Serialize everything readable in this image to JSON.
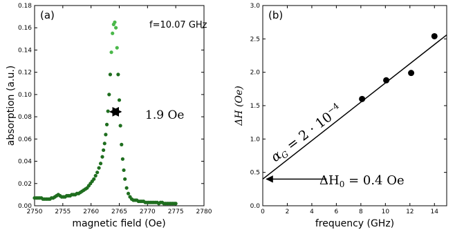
{
  "chart_data": [
    {
      "type": "scatter",
      "panel_label": "(a)",
      "annotation": "f=10.07 GHz",
      "linewidth_annotation": "1.9 Oe",
      "xlabel": "magnetic field (Oe)",
      "ylabel": "absorption (a.u.)",
      "xlim": [
        2750,
        2780
      ],
      "ylim": [
        0,
        0.18
      ],
      "xticks": [
        "2750",
        "2755",
        "2760",
        "2765",
        "2770",
        "2775",
        "2780"
      ],
      "yticks": [
        "0.00",
        "0.02",
        "0.04",
        "0.06",
        "0.08",
        "0.10",
        "0.12",
        "0.14",
        "0.16",
        "0.18"
      ],
      "point_color": "#1f6e1f",
      "peak_point_color": "#4ab84a",
      "x": [
        2750.0,
        2750.3,
        2750.6,
        2750.9,
        2751.2,
        2751.5,
        2751.8,
        2752.1,
        2752.4,
        2752.7,
        2753.0,
        2753.3,
        2753.6,
        2753.9,
        2754.2,
        2754.5,
        2754.8,
        2755.1,
        2755.4,
        2755.7,
        2756.0,
        2756.3,
        2756.6,
        2756.9,
        2757.2,
        2757.5,
        2757.8,
        2758.1,
        2758.4,
        2758.7,
        2759.0,
        2759.3,
        2759.6,
        2759.9,
        2760.2,
        2760.5,
        2760.8,
        2761.1,
        2761.4,
        2761.7,
        2762.0,
        2762.2,
        2762.4,
        2762.6,
        2762.8,
        2763.0,
        2763.2,
        2763.4,
        2763.6,
        2763.8,
        2764.0,
        2764.2,
        2764.4,
        2764.6,
        2764.8,
        2765.0,
        2765.2,
        2765.4,
        2765.6,
        2765.8,
        2766.0,
        2766.3,
        2766.6,
        2766.9,
        2767.2,
        2767.5,
        2767.8,
        2768.1,
        2768.4,
        2768.7,
        2769.0,
        2769.3,
        2769.6,
        2769.9,
        2770.2,
        2770.5,
        2770.8,
        2771.1,
        2771.4,
        2771.7,
        2772.0,
        2772.3,
        2772.6,
        2772.9,
        2773.2,
        2773.5,
        2773.8,
        2774.1,
        2774.4,
        2774.7,
        2775.0
      ],
      "y": [
        0.007,
        0.007,
        0.007,
        0.007,
        0.007,
        0.006,
        0.006,
        0.006,
        0.006,
        0.006,
        0.007,
        0.007,
        0.008,
        0.009,
        0.01,
        0.009,
        0.008,
        0.008,
        0.008,
        0.009,
        0.009,
        0.009,
        0.01,
        0.01,
        0.01,
        0.011,
        0.011,
        0.012,
        0.013,
        0.014,
        0.015,
        0.016,
        0.018,
        0.02,
        0.022,
        0.024,
        0.027,
        0.03,
        0.034,
        0.038,
        0.044,
        0.05,
        0.056,
        0.064,
        0.073,
        0.085,
        0.1,
        0.118,
        0.138,
        0.155,
        0.163,
        0.165,
        0.16,
        0.142,
        0.118,
        0.095,
        0.072,
        0.055,
        0.042,
        0.032,
        0.024,
        0.016,
        0.011,
        0.008,
        0.006,
        0.005,
        0.005,
        0.005,
        0.004,
        0.004,
        0.004,
        0.004,
        0.003,
        0.003,
        0.003,
        0.003,
        0.003,
        0.003,
        0.003,
        0.003,
        0.002,
        0.003,
        0.003,
        0.002,
        0.002,
        0.002,
        0.002,
        0.002,
        0.002,
        0.002,
        0.002
      ],
      "linewidth_arrow": {
        "x_from": 2763.4,
        "x_to": 2765.3,
        "y": 0.0845
      }
    },
    {
      "type": "scatter",
      "panel_label": "(b)",
      "xlabel": "frequency (GHz)",
      "ylabel": "ΔH (Oe)",
      "xlim": [
        0,
        15
      ],
      "ylim": [
        0,
        3.0
      ],
      "xticks": [
        "0",
        "2",
        "4",
        "6",
        "8",
        "10",
        "12",
        "14"
      ],
      "yticks": [
        "0.0",
        "0.5",
        "1.0",
        "1.5",
        "2.0",
        "2.5",
        "3.0"
      ],
      "point_color": "#000000",
      "x": [
        8.1,
        10.07,
        12.1,
        14.0
      ],
      "y": [
        1.6,
        1.88,
        1.99,
        2.54
      ],
      "fit_line": {
        "x": [
          0,
          15
        ],
        "y": [
          0.4,
          2.56
        ]
      },
      "fit_annotation": {
        "symbol": "α",
        "subscript": "G",
        "text": " = 2 · 10",
        "exponent": "−4"
      },
      "intercept_annotation": {
        "symbol": "ΔH",
        "subscript": "0",
        "text": " = 0.4 Oe"
      },
      "intercept_arrow": {
        "x_from": 5.2,
        "x_to": 0.3,
        "y": 0.4
      }
    }
  ]
}
